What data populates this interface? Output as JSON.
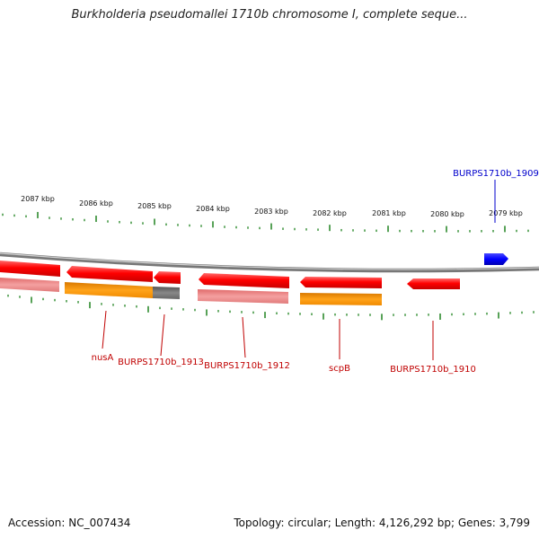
{
  "title": "Burkholderia pseudomallei 1710b chromosome I, complete seque...",
  "footer": {
    "accession": "Accession: NC_007434",
    "stats": "Topology: circular; Length: 4,126,292 bp; Genes: 3,799"
  },
  "kbp_labels": [
    "2087 kbp",
    "2086 kbp",
    "2085 kbp",
    "2084 kbp",
    "2083 kbp",
    "2082 kbp",
    "2081 kbp",
    "2080 kbp",
    "2079 kbp"
  ],
  "gene_labels": [
    "nusA",
    "BURPS1710b_1913",
    "BURPS1710b_1912",
    "scpB",
    "BURPS1710b_1910",
    "BURPS1710b_1909"
  ],
  "colors": {
    "reverse_cds": "#ff0000",
    "reverse_feature_light": "#f08080",
    "orange_feature": "#ff9900",
    "gray_feature": "#707070",
    "forward_cds": "#0000ff",
    "tick": "#2e8b2e",
    "backbone": "#808080",
    "label_red": "#c00000",
    "label_blue": "#0000cc"
  }
}
